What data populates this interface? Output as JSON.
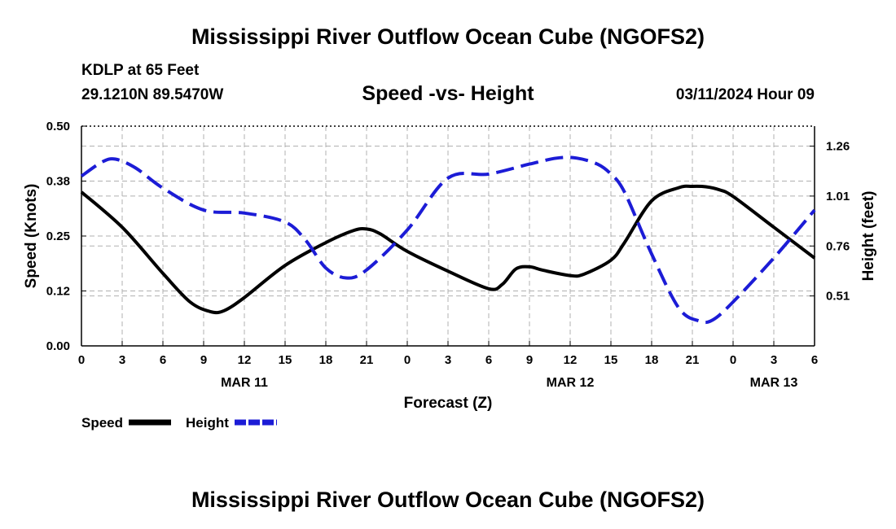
{
  "header": {
    "title": "Mississippi River Outflow Ocean Cube (NGOFS2)",
    "station": "KDLP at 65 Feet",
    "coords": "29.1210N  89.5470W",
    "subtitle": "Speed -vs- Height",
    "datetime": "03/11/2024 Hour 09"
  },
  "footer": {
    "title": "Mississippi River Outflow Ocean Cube (NGOFS2)"
  },
  "colors": {
    "speed": "#000000",
    "height": "#1c1cd6",
    "grid": "#b0b0b0"
  },
  "chart_data": {
    "type": "line",
    "title": "Speed -vs- Height",
    "xlabel": "Forecast (Z)",
    "ylabel": "Speed (Knots)",
    "y2label": "Height (feet)",
    "x_range_hours": [
      0,
      54
    ],
    "x_ticks": [
      {
        "h": 0,
        "label": "0"
      },
      {
        "h": 3,
        "label": "3"
      },
      {
        "h": 6,
        "label": "6"
      },
      {
        "h": 9,
        "label": "9"
      },
      {
        "h": 12,
        "label": "12"
      },
      {
        "h": 15,
        "label": "15"
      },
      {
        "h": 18,
        "label": "18"
      },
      {
        "h": 21,
        "label": "21"
      },
      {
        "h": 24,
        "label": "0"
      },
      {
        "h": 27,
        "label": "3"
      },
      {
        "h": 30,
        "label": "6"
      },
      {
        "h": 33,
        "label": "9"
      },
      {
        "h": 36,
        "label": "12"
      },
      {
        "h": 39,
        "label": "15"
      },
      {
        "h": 42,
        "label": "18"
      },
      {
        "h": 45,
        "label": "21"
      },
      {
        "h": 48,
        "label": "0"
      },
      {
        "h": 51,
        "label": "3"
      },
      {
        "h": 54,
        "label": "6"
      }
    ],
    "date_labels": [
      {
        "h": 12,
        "label": "MAR 11"
      },
      {
        "h": 36,
        "label": "MAR 12"
      },
      {
        "h": 51,
        "label": "MAR 13"
      }
    ],
    "y_left": {
      "range": [
        0,
        0.5
      ],
      "ticks": [
        {
          "v": 0,
          "label": "0.00"
        },
        {
          "v": 0.125,
          "label": "0.12"
        },
        {
          "v": 0.25,
          "label": "0.25"
        },
        {
          "v": 0.375,
          "label": "0.38"
        },
        {
          "v": 0.5,
          "label": "0.50"
        }
      ]
    },
    "y_right": {
      "range": [
        0.26,
        1.36
      ],
      "ticks": [
        {
          "v": 0.51,
          "label": "0.51"
        },
        {
          "v": 0.76,
          "label": "0.76"
        },
        {
          "v": 1.01,
          "label": "1.01"
        },
        {
          "v": 1.26,
          "label": "1.26"
        }
      ]
    },
    "series": [
      {
        "name": "Speed",
        "axis": "left",
        "style": "solid",
        "points": [
          [
            0,
            0.35
          ],
          [
            3,
            0.27
          ],
          [
            6,
            0.165
          ],
          [
            8,
            0.1
          ],
          [
            9.5,
            0.078
          ],
          [
            10.5,
            0.08
          ],
          [
            12,
            0.11
          ],
          [
            15,
            0.183
          ],
          [
            18,
            0.235
          ],
          [
            20,
            0.262
          ],
          [
            21,
            0.266
          ],
          [
            22,
            0.255
          ],
          [
            24,
            0.215
          ],
          [
            27,
            0.17
          ],
          [
            30,
            0.13
          ],
          [
            31,
            0.14
          ],
          [
            32,
            0.175
          ],
          [
            33,
            0.18
          ],
          [
            34,
            0.172
          ],
          [
            36,
            0.16
          ],
          [
            37,
            0.163
          ],
          [
            39,
            0.195
          ],
          [
            40,
            0.235
          ],
          [
            42,
            0.33
          ],
          [
            44,
            0.36
          ],
          [
            45,
            0.363
          ],
          [
            46,
            0.362
          ],
          [
            47,
            0.355
          ],
          [
            48,
            0.34
          ],
          [
            51,
            0.27
          ],
          [
            54,
            0.2
          ]
        ]
      },
      {
        "name": "Height",
        "axis": "right",
        "style": "dashed",
        "points": [
          [
            0,
            1.11
          ],
          [
            1.5,
            1.18
          ],
          [
            2.5,
            1.195
          ],
          [
            4,
            1.15
          ],
          [
            6,
            1.05
          ],
          [
            9,
            0.94
          ],
          [
            12,
            0.925
          ],
          [
            15,
            0.88
          ],
          [
            16.5,
            0.79
          ],
          [
            18,
            0.65
          ],
          [
            19.5,
            0.6
          ],
          [
            21,
            0.64
          ],
          [
            24,
            0.84
          ],
          [
            27,
            1.1
          ],
          [
            30,
            1.12
          ],
          [
            33,
            1.17
          ],
          [
            35,
            1.2
          ],
          [
            36.5,
            1.2
          ],
          [
            38,
            1.17
          ],
          [
            39,
            1.12
          ],
          [
            40,
            1.03
          ],
          [
            42,
            0.72
          ],
          [
            44,
            0.45
          ],
          [
            45.5,
            0.385
          ],
          [
            46.5,
            0.39
          ],
          [
            48,
            0.48
          ],
          [
            51,
            0.7
          ],
          [
            54,
            0.94
          ]
        ]
      }
    ],
    "legend": [
      {
        "label": "Speed",
        "style": "solid"
      },
      {
        "label": "Height",
        "style": "dashed"
      }
    ]
  }
}
